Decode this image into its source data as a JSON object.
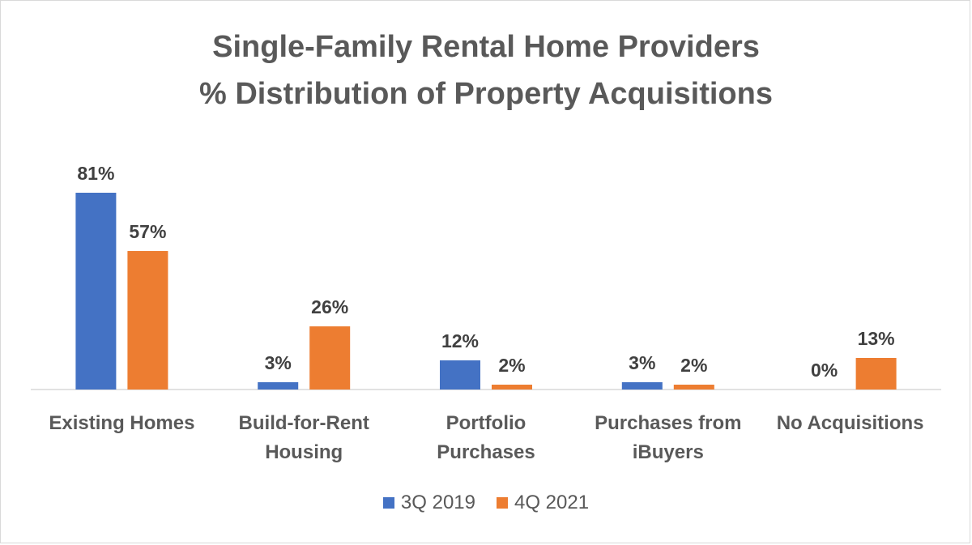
{
  "chart_data": {
    "type": "bar",
    "title": "Single-Family Rental Home Providers",
    "subtitle": "% Distribution of Property Acquisitions",
    "categories": [
      [
        "Existing Homes"
      ],
      [
        "Build-for-Rent",
        "Housing"
      ],
      [
        "Portfolio",
        "Purchases"
      ],
      [
        "Purchases from",
        "iBuyers"
      ],
      [
        "No Acquisitions"
      ]
    ],
    "series": [
      {
        "name": "3Q 2019",
        "color": "#4472C4",
        "values": [
          81,
          3,
          12,
          3,
          0
        ],
        "labels": [
          "81%",
          "3%",
          "12%",
          "3%",
          "0%"
        ]
      },
      {
        "name": "4Q 2021",
        "color": "#ED7D31",
        "values": [
          57,
          26,
          2,
          2,
          13
        ],
        "labels": [
          "57%",
          "26%",
          "2%",
          "2%",
          "13%"
        ]
      }
    ],
    "ylim": [
      0,
      100
    ],
    "grid": false,
    "legend": "bottom"
  }
}
